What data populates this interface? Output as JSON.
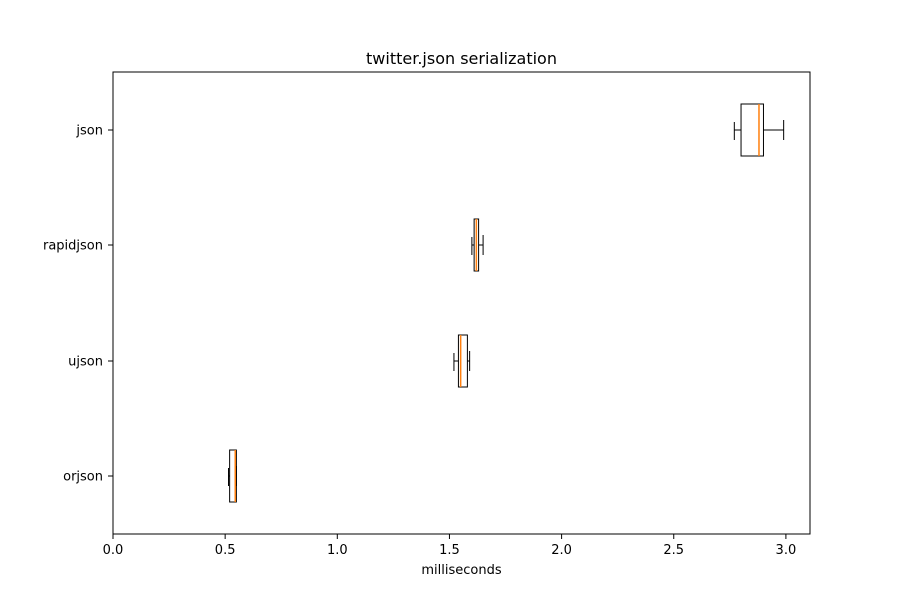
{
  "chart_data": {
    "type": "boxplot",
    "orientation": "horizontal",
    "title": "twitter.json serialization",
    "xlabel": "milliseconds",
    "ylabel": "",
    "xlim": [
      0.0,
      3.11
    ],
    "xticks": [
      "0.0",
      "0.5",
      "1.0",
      "1.5",
      "2.0",
      "2.5",
      "3.0"
    ],
    "grid": false,
    "categories": [
      "json",
      "rapidjson",
      "ujson",
      "orjson"
    ],
    "boxes": [
      {
        "label": "json",
        "whisker_low": 2.77,
        "q1": 2.8,
        "median": 2.88,
        "q3": 2.9,
        "whisker_high": 2.99
      },
      {
        "label": "rapidjson",
        "whisker_low": 1.6,
        "q1": 1.61,
        "median": 1.62,
        "q3": 1.63,
        "whisker_high": 1.65
      },
      {
        "label": "ujson",
        "whisker_low": 1.52,
        "q1": 1.54,
        "median": 1.55,
        "q3": 1.58,
        "whisker_high": 1.59
      },
      {
        "label": "orjson",
        "whisker_low": 0.515,
        "q1": 0.52,
        "median": 0.545,
        "q3": 0.55,
        "whisker_high": 0.55
      }
    ],
    "colors": {
      "box": "#000000",
      "median": "#ff7f0e",
      "axes": "#000000"
    }
  }
}
